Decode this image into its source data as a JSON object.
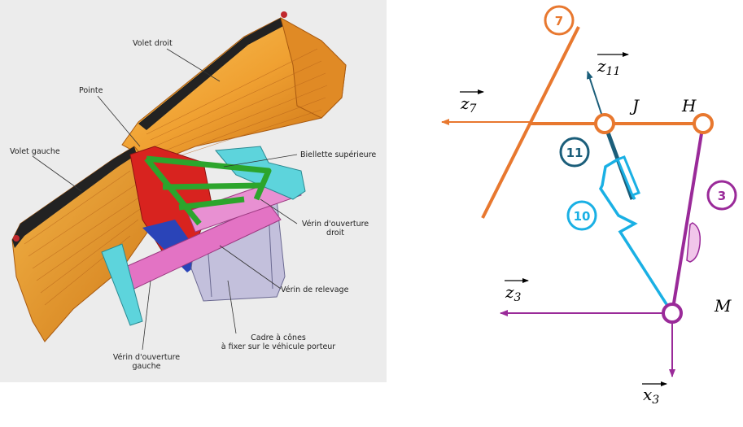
{
  "photo": {
    "labels": {
      "volet_droit": "Volet droit",
      "pointe": "Pointe",
      "volet_gauche": "Volet gauche",
      "biellette_sup": "Biellette supérieure",
      "verin_ouv_droit_l1": "Vérin d'ouverture",
      "verin_ouv_droit_l2": "droit",
      "verin_relevage": "Vérin de relevage",
      "cadre_l1": "Cadre à cônes",
      "cadre_l2": "à fixer sur le véhicule porteur",
      "verin_ouv_gauche_l1": "Vérin d'ouverture",
      "verin_ouv_gauche_l2": "gauche"
    }
  },
  "schema": {
    "solids": {
      "s7": "7",
      "s11": "11",
      "s10": "10",
      "s3": "3"
    },
    "points": {
      "J": "J",
      "H": "H",
      "M": "M"
    },
    "vectors": {
      "z11": {
        "base": "z",
        "sub": "11"
      },
      "z7": {
        "base": "z",
        "sub": "7"
      },
      "z3": {
        "base": "z",
        "sub": "3"
      },
      "x3": {
        "base": "x",
        "sub": "3"
      }
    },
    "colors": {
      "solid7": "#e8782f",
      "solid11": "#1b5e7a",
      "solid10": "#1ab0e4",
      "solid3": "#9a2a99",
      "solid3_fill": "#f1c6ea"
    }
  }
}
